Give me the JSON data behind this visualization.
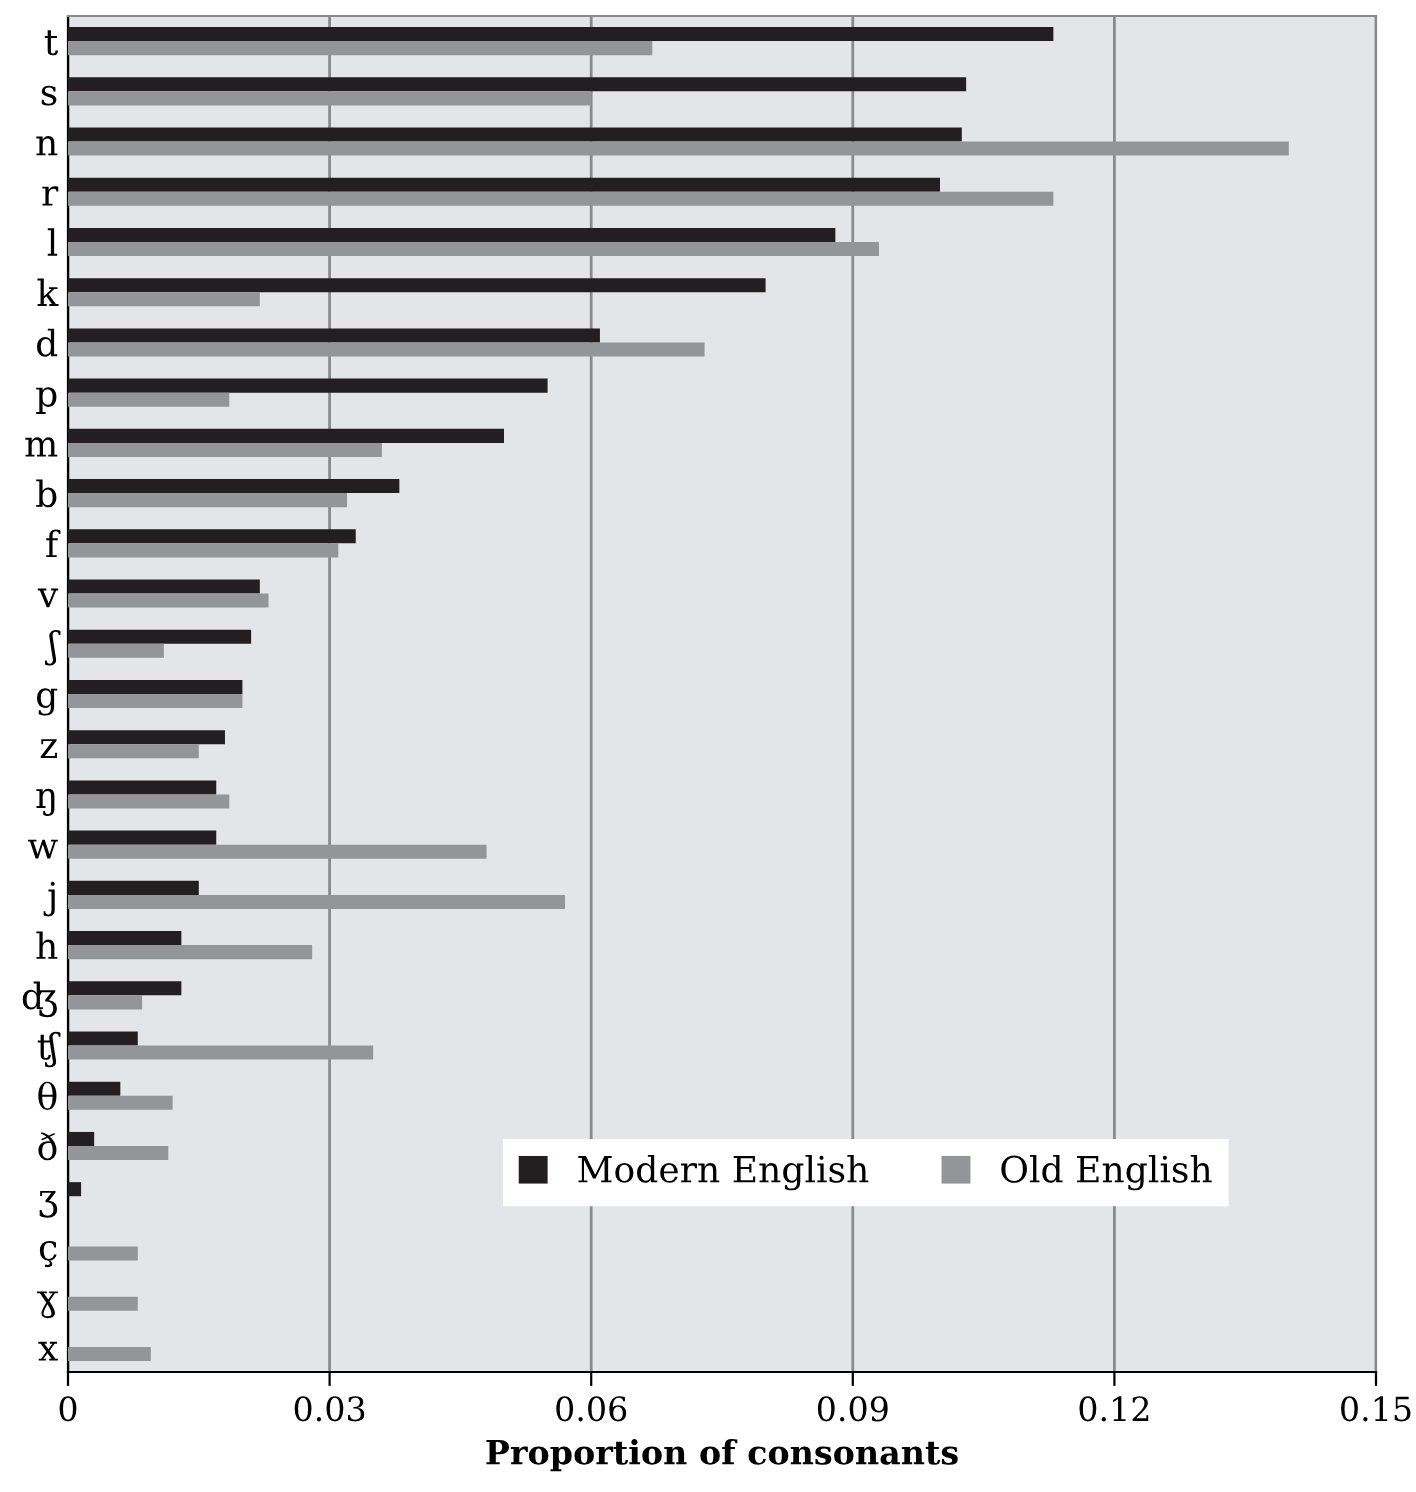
{
  "chart_data": {
    "type": "bar",
    "orientation": "horizontal",
    "xlabel": "Proportion of consonants",
    "categories": [
      "t",
      "s",
      "n",
      "r",
      "l",
      "k",
      "d",
      "p",
      "m",
      "b",
      "f",
      "v",
      "ʃ",
      "g",
      "z",
      "ŋ",
      "w",
      "j",
      "h",
      "ʤ",
      "ʧ",
      "θ",
      "ð",
      "ʒ",
      "ç",
      "ɣ",
      "x"
    ],
    "series": [
      {
        "name": "Modern English",
        "color": "#231f20",
        "values": [
          0.113,
          0.103,
          0.1025,
          0.1,
          0.088,
          0.08,
          0.061,
          0.055,
          0.05,
          0.038,
          0.033,
          0.022,
          0.021,
          0.02,
          0.018,
          0.017,
          0.017,
          0.015,
          0.013,
          0.013,
          0.008,
          0.006,
          0.003,
          0.0015,
          null,
          null,
          null
        ]
      },
      {
        "name": "Old English",
        "color": "#939598",
        "values": [
          0.067,
          0.06,
          0.14,
          0.113,
          0.093,
          0.022,
          0.073,
          0.0185,
          0.036,
          0.032,
          0.031,
          0.023,
          0.011,
          0.02,
          0.015,
          0.0185,
          0.048,
          0.057,
          0.028,
          0.0085,
          0.035,
          0.012,
          0.0115,
          null,
          0.008,
          0.008,
          0.0095
        ]
      }
    ],
    "xlim": [
      0,
      0.15
    ],
    "xticks": [
      0,
      0.03,
      0.06,
      0.09,
      0.12,
      0.15
    ],
    "grid": "x",
    "legend": "bottom right"
  }
}
